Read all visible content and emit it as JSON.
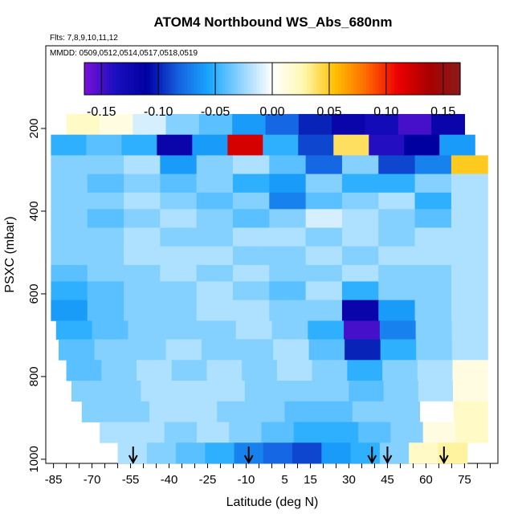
{
  "chart_data": {
    "type": "heatmap",
    "title": "ATOM4 Northbound WS_Abs_680nm",
    "flights_label": "Flts: 7,8,9,10,11,12",
    "dates_label": "MMDD: 0509,0512,0514,0517,0518,0519",
    "xlabel": "Latitude (deg N)",
    "ylabel": "PSXC (mbar)",
    "xlim": [
      -88,
      88
    ],
    "ylim": [
      1010,
      0
    ],
    "x_ticks": [
      "-85",
      "-70",
      "-55",
      "-40",
      "-25",
      "-10",
      "5",
      "15",
      "30",
      "45",
      "60",
      "75"
    ],
    "y_ticks": [
      "200",
      "400",
      "600",
      "800",
      "1000"
    ],
    "colorbar": {
      "range": [
        -0.165,
        0.165
      ],
      "ticks": [
        "-0.15",
        "-0.10",
        "-0.05",
        "0.00",
        "0.05",
        "0.10",
        "0.15"
      ],
      "colors": [
        "#7a10d8",
        "#1a0fbf",
        "#0000a0",
        "#1560e0",
        "#1aa8ff",
        "#8fd4ff",
        "#ffffff",
        "#fff8b0",
        "#ffc000",
        "#ff6a00",
        "#ee0000",
        "#a80000",
        "#8a1a1a"
      ]
    },
    "arrows_latitude": [
      -54,
      -9,
      39,
      45,
      67
    ],
    "bins": [
      {
        "p": [
          165,
          215
        ],
        "lat": [
          -80,
          75
        ],
        "values": [
          0.02,
          0.01,
          -0.01,
          -0.03,
          -0.04,
          -0.06,
          -0.08,
          -0.1,
          -0.12,
          -0.13,
          -0.15,
          -0.12
        ]
      },
      {
        "p": [
          215,
          265
        ],
        "lat": [
          -86,
          79
        ],
        "values": [
          -0.05,
          -0.04,
          -0.05,
          -0.12,
          -0.06,
          0.12,
          -0.05,
          -0.09,
          0.04,
          -0.14,
          -0.11,
          -0.06
        ]
      },
      {
        "p": [
          265,
          310
        ],
        "lat": [
          -86,
          84
        ],
        "values": [
          -0.03,
          -0.03,
          -0.02,
          -0.06,
          -0.03,
          -0.02,
          -0.04,
          -0.08,
          -0.03,
          -0.09,
          -0.07,
          0.05
        ]
      },
      {
        "p": [
          310,
          355
        ],
        "lat": [
          -86,
          84
        ],
        "values": [
          -0.03,
          -0.04,
          -0.03,
          -0.04,
          -0.03,
          -0.05,
          -0.06,
          -0.03,
          -0.05,
          -0.05,
          -0.03,
          -0.02
        ]
      },
      {
        "p": [
          355,
          395
        ],
        "lat": [
          -86,
          84
        ],
        "values": [
          -0.03,
          -0.03,
          -0.02,
          -0.03,
          -0.04,
          -0.03,
          -0.07,
          -0.04,
          -0.03,
          -0.02,
          -0.05,
          -0.02
        ]
      },
      {
        "p": [
          395,
          440
        ],
        "lat": [
          -86,
          84
        ],
        "values": [
          -0.03,
          -0.04,
          -0.03,
          -0.02,
          -0.03,
          -0.04,
          -0.03,
          -0.01,
          -0.02,
          -0.03,
          -0.04,
          -0.02
        ]
      },
      {
        "p": [
          440,
          485
        ],
        "lat": [
          -86,
          84
        ],
        "values": [
          -0.03,
          -0.03,
          -0.02,
          -0.03,
          -0.03,
          -0.02,
          -0.02,
          -0.03,
          -0.02,
          -0.03,
          -0.02,
          -0.02
        ]
      },
      {
        "p": [
          485,
          530
        ],
        "lat": [
          -86,
          84
        ],
        "values": [
          -0.03,
          -0.03,
          -0.02,
          -0.02,
          -0.02,
          -0.03,
          -0.03,
          -0.02,
          -0.03,
          -0.02,
          -0.02,
          -0.02
        ]
      },
      {
        "p": [
          530,
          570
        ],
        "lat": [
          -86,
          84
        ],
        "values": [
          -0.04,
          -0.03,
          -0.03,
          -0.02,
          -0.03,
          -0.02,
          -0.03,
          -0.03,
          -0.02,
          -0.03,
          -0.03,
          -0.02
        ]
      },
      {
        "p": [
          570,
          615
        ],
        "lat": [
          -86,
          84
        ],
        "values": [
          -0.05,
          -0.04,
          -0.03,
          -0.03,
          -0.02,
          -0.03,
          -0.04,
          -0.02,
          -0.05,
          -0.03,
          -0.03,
          -0.02
        ]
      },
      {
        "p": [
          615,
          665
        ],
        "lat": [
          -86,
          84
        ],
        "values": [
          -0.06,
          -0.04,
          -0.03,
          -0.03,
          -0.02,
          -0.02,
          -0.03,
          -0.03,
          -0.12,
          -0.06,
          -0.03,
          -0.02
        ]
      },
      {
        "p": [
          665,
          710
        ],
        "lat": [
          -84,
          84
        ],
        "values": [
          -0.05,
          -0.04,
          -0.03,
          -0.03,
          -0.03,
          -0.02,
          -0.03,
          -0.05,
          -0.15,
          -0.07,
          -0.03,
          -0.02
        ]
      },
      {
        "p": [
          710,
          760
        ],
        "lat": [
          -83,
          84
        ],
        "values": [
          -0.04,
          -0.03,
          -0.03,
          -0.02,
          -0.03,
          -0.03,
          -0.02,
          -0.04,
          -0.1,
          -0.05,
          -0.03,
          -0.02
        ]
      },
      {
        "p": [
          760,
          810
        ],
        "lat": [
          -80,
          84
        ],
        "values": [
          -0.04,
          -0.03,
          -0.02,
          -0.03,
          -0.02,
          -0.03,
          -0.02,
          -0.03,
          -0.05,
          -0.03,
          -0.02,
          0.01
        ]
      },
      {
        "p": [
          810,
          860
        ],
        "lat": [
          -78,
          84
        ],
        "values": [
          -0.03,
          -0.03,
          -0.02,
          -0.02,
          -0.02,
          -0.03,
          -0.03,
          -0.03,
          -0.04,
          -0.03,
          -0.02,
          0.01
        ]
      },
      {
        "p": [
          860,
          910
        ],
        "lat": [
          -74,
          84
        ],
        "values": [
          -0.03,
          -0.03,
          -0.02,
          -0.02,
          -0.03,
          -0.03,
          -0.04,
          -0.04,
          -0.03,
          -0.03,
          0.0,
          0.02
        ]
      },
      {
        "p": [
          910,
          960
        ],
        "lat": [
          -67,
          84
        ],
        "values": [
          -0.02,
          -0.02,
          -0.03,
          -0.02,
          -0.03,
          -0.04,
          -0.05,
          -0.05,
          -0.04,
          -0.03,
          0.01,
          0.02
        ]
      },
      {
        "p": [
          960,
          1010
        ],
        "lat": [
          -60,
          76
        ],
        "values": [
          -0.02,
          -0.03,
          -0.04,
          -0.05,
          -0.07,
          -0.08,
          -0.09,
          -0.06,
          -0.05,
          -0.03,
          0.02,
          0.03
        ]
      }
    ]
  }
}
